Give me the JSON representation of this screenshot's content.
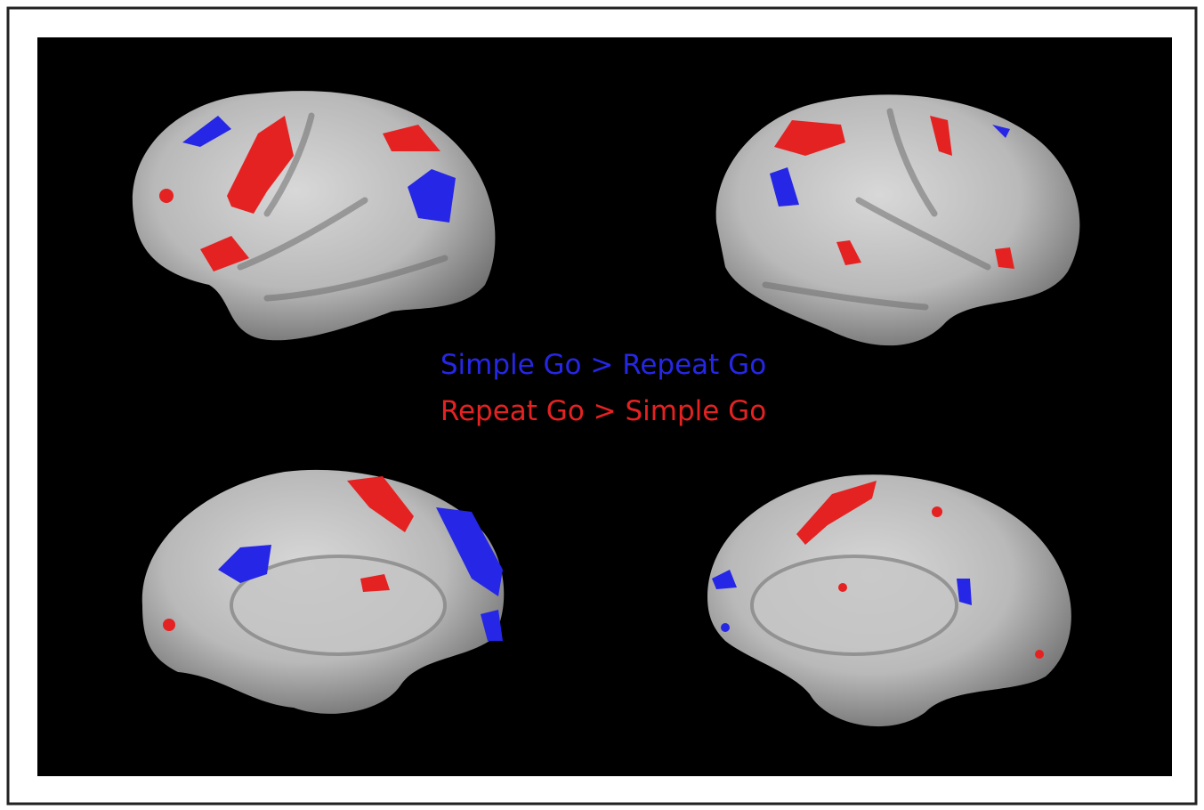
{
  "legend": {
    "items": [
      {
        "label": "Simple Go > Repeat Go"
      },
      {
        "label": "Repeat Go > Simple Go"
      }
    ]
  }
}
